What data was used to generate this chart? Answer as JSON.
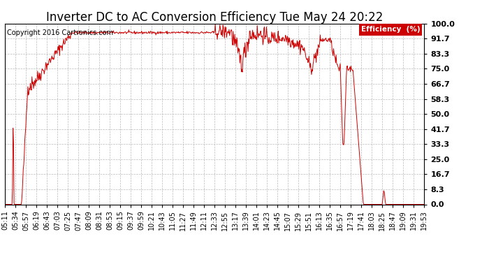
{
  "title": "Inverter DC to AC Conversion Efficiency Tue May 24 20:22",
  "copyright": "Copyright 2016 Cartronics.com",
  "legend_label": "Efficiency  (%)",
  "legend_bg": "#cc0000",
  "legend_text_color": "#ffffff",
  "line_color": "#cc0000",
  "background_color": "#ffffff",
  "grid_color": "#bbbbbb",
  "ylim": [
    0,
    100
  ],
  "yticks": [
    0.0,
    8.3,
    16.7,
    25.0,
    33.3,
    41.7,
    50.0,
    58.3,
    66.7,
    75.0,
    83.3,
    91.7,
    100.0
  ],
  "xtick_labels": [
    "05:11",
    "05:34",
    "05:57",
    "06:19",
    "06:43",
    "07:03",
    "07:25",
    "07:47",
    "08:09",
    "08:31",
    "08:53",
    "09:15",
    "09:37",
    "09:59",
    "10:21",
    "10:43",
    "11:05",
    "11:27",
    "11:49",
    "12:11",
    "12:33",
    "12:55",
    "13:17",
    "13:39",
    "14:01",
    "14:23",
    "14:45",
    "15:07",
    "15:29",
    "15:51",
    "16:13",
    "16:35",
    "16:57",
    "17:19",
    "17:41",
    "18:03",
    "18:25",
    "18:47",
    "19:09",
    "19:31",
    "19:53"
  ],
  "title_fontsize": 12,
  "copyright_fontsize": 7,
  "tick_fontsize": 7,
  "figsize": [
    6.9,
    3.75
  ],
  "dpi": 100
}
